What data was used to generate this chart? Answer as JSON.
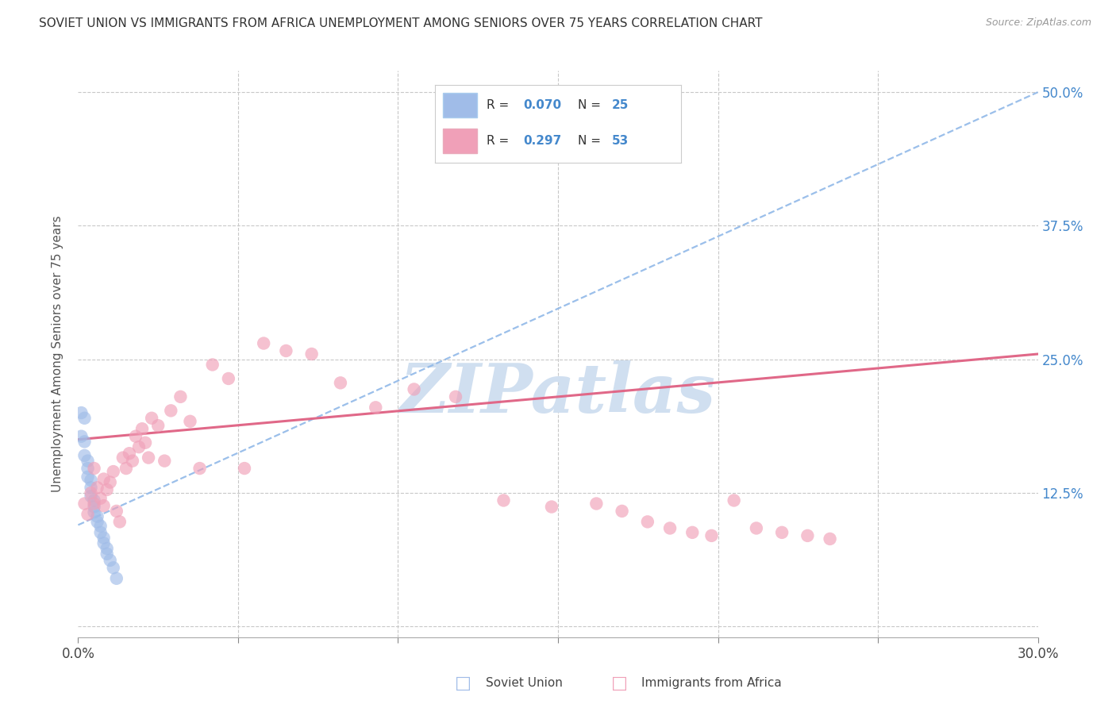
{
  "title": "SOVIET UNION VS IMMIGRANTS FROM AFRICA UNEMPLOYMENT AMONG SENIORS OVER 75 YEARS CORRELATION CHART",
  "source": "Source: ZipAtlas.com",
  "ylabel": "Unemployment Among Seniors over 75 years",
  "x_min": 0.0,
  "x_max": 0.3,
  "y_min": -0.01,
  "y_max": 0.52,
  "x_ticks": [
    0.0,
    0.05,
    0.1,
    0.15,
    0.2,
    0.25,
    0.3
  ],
  "x_tick_labels": [
    "0.0%",
    "",
    "",
    "",
    "",
    "",
    "30.0%"
  ],
  "y_ticks": [
    0.0,
    0.125,
    0.25,
    0.375,
    0.5
  ],
  "y_right_labels": [
    "",
    "12.5%",
    "25.0%",
    "37.5%",
    "50.0%"
  ],
  "soviet_color": "#a0bce8",
  "africa_color": "#f0a0b8",
  "soviet_line_color": "#90b8e8",
  "africa_line_color": "#e06888",
  "watermark": "ZIPatlas",
  "watermark_color": "#d0dff0",
  "legend_color": "#4488cc",
  "grid_color": "#c8c8c8",
  "soviet_x": [
    0.001,
    0.001,
    0.002,
    0.002,
    0.002,
    0.003,
    0.003,
    0.003,
    0.004,
    0.004,
    0.004,
    0.005,
    0.005,
    0.005,
    0.006,
    0.006,
    0.007,
    0.007,
    0.008,
    0.008,
    0.009,
    0.009,
    0.01,
    0.011,
    0.012
  ],
  "soviet_y": [
    0.2,
    0.178,
    0.195,
    0.173,
    0.16,
    0.155,
    0.148,
    0.14,
    0.137,
    0.13,
    0.122,
    0.118,
    0.112,
    0.107,
    0.103,
    0.098,
    0.094,
    0.088,
    0.083,
    0.078,
    0.073,
    0.068,
    0.062,
    0.055,
    0.045
  ],
  "africa_x": [
    0.002,
    0.003,
    0.004,
    0.005,
    0.005,
    0.006,
    0.007,
    0.008,
    0.008,
    0.009,
    0.01,
    0.011,
    0.012,
    0.013,
    0.014,
    0.015,
    0.016,
    0.017,
    0.018,
    0.019,
    0.02,
    0.021,
    0.022,
    0.023,
    0.025,
    0.027,
    0.029,
    0.032,
    0.035,
    0.038,
    0.042,
    0.047,
    0.052,
    0.058,
    0.065,
    0.073,
    0.082,
    0.093,
    0.105,
    0.118,
    0.133,
    0.148,
    0.162,
    0.17,
    0.178,
    0.185,
    0.192,
    0.198,
    0.205,
    0.212,
    0.22,
    0.228,
    0.235
  ],
  "africa_y": [
    0.115,
    0.105,
    0.125,
    0.115,
    0.148,
    0.13,
    0.12,
    0.113,
    0.138,
    0.128,
    0.135,
    0.145,
    0.108,
    0.098,
    0.158,
    0.148,
    0.162,
    0.155,
    0.178,
    0.168,
    0.185,
    0.172,
    0.158,
    0.195,
    0.188,
    0.155,
    0.202,
    0.215,
    0.192,
    0.148,
    0.245,
    0.232,
    0.148,
    0.265,
    0.258,
    0.255,
    0.228,
    0.205,
    0.222,
    0.215,
    0.118,
    0.112,
    0.115,
    0.108,
    0.098,
    0.092,
    0.088,
    0.085,
    0.118,
    0.092,
    0.088,
    0.085,
    0.082
  ],
  "soviet_trend_x0": 0.0,
  "soviet_trend_y0": 0.095,
  "soviet_trend_x1": 0.3,
  "soviet_trend_y1": 0.5,
  "africa_trend_x0": 0.0,
  "africa_trend_y0": 0.175,
  "africa_trend_x1": 0.3,
  "africa_trend_y1": 0.255
}
